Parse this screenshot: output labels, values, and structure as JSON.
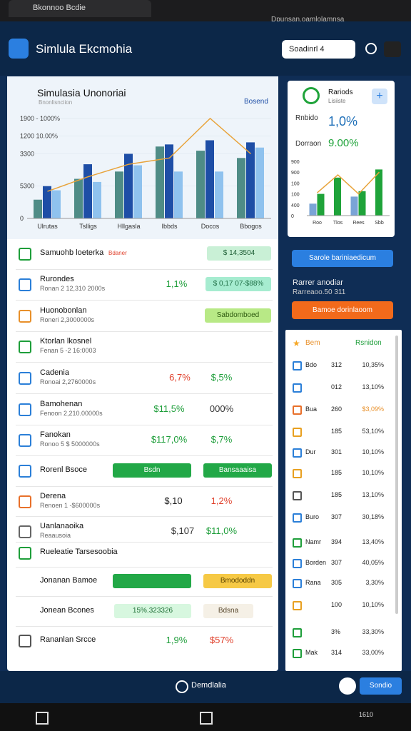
{
  "browser": {
    "tab": "Bkonnoo Bcdie",
    "address": "Dpunsan.oamlolamnsa"
  },
  "header": {
    "title": "Simlula Ekcmohia",
    "selector": "Soadinrl 4"
  },
  "main_chart": {
    "type": "bar",
    "title": "Simulasia Unonoriai",
    "subtitle": "Bnonlisnciion",
    "legend": "Bosend",
    "categories": [
      "Ulrutas",
      "Tslligs",
      "Hllgasla",
      "Ibbds",
      "Docos",
      "Bbogos"
    ],
    "series": [
      {
        "color": "#4f8c86",
        "values": [
          18,
          38,
          45,
          69,
          65,
          58
        ]
      },
      {
        "color": "#1e4ea6",
        "values": [
          31,
          52,
          62,
          71,
          75,
          73
        ]
      },
      {
        "color": "#8fc2ee",
        "values": [
          27,
          35,
          51,
          45,
          45,
          68
        ]
      },
      {
        "type": "line",
        "color": "#e8a33a",
        "values": [
          26,
          40,
          52,
          58,
          96,
          62
        ]
      }
    ],
    "ylim": [
      0,
      100
    ],
    "yticks": [
      {
        "value": 96,
        "label": "1900 - 1000%"
      },
      {
        "value": 79,
        "label": "1200 10.00%"
      },
      {
        "value": 62,
        "label": "3300"
      },
      {
        "value": 31,
        "label": "5300"
      },
      0
    ],
    "grid": true
  },
  "side_chart": {
    "type": "bar",
    "title": "Rariods",
    "subtitle": "Lisiiste",
    "stats": [
      {
        "label": "Rnbido",
        "value": "1,0%"
      },
      {
        "label": "Dorraon",
        "value": "9.00%"
      }
    ],
    "categories": [
      "Roo",
      "Tlos",
      "Rees",
      "Sbb"
    ],
    "series": [
      {
        "color": "#7aa4d6",
        "values": [
          22,
          null,
          35,
          null
        ]
      },
      {
        "color": "#1fa33a",
        "values": [
          40,
          70,
          45,
          85
        ]
      },
      {
        "type": "line",
        "color": "#e8a33a",
        "values": [
          42,
          75,
          40,
          80
        ]
      }
    ],
    "ylim": [
      0,
      100
    ],
    "yticks": [
      {
        "value": 100,
        "label": "900"
      },
      {
        "value": 80,
        "label": "900"
      },
      {
        "value": 60,
        "label": "100"
      },
      {
        "value": 40,
        "label": "100"
      },
      {
        "value": 20,
        "label": "400"
      },
      0
    ]
  },
  "side_actions": {
    "primary": "Sarole bariniaedicum",
    "text": "Rarrer anodiar",
    "subtext": "Rarreaoo.50 311",
    "secondary": "Bamoe dorinlaoom"
  },
  "rows": [
    {
      "title": "Samuohb loeterka",
      "tag": "Bdaner",
      "icon": "#1e9e3a",
      "cells": [
        {
          "text": "$ 14,3504",
          "color": "#1e5e35",
          "bg": "#c9f0d6"
        }
      ]
    },
    {
      "title": "Rurondes",
      "sub": "Ronan 2 12,310 2000s",
      "icon": "#2b7fd8",
      "cells": [
        {
          "text": "1,1%",
          "color": "#1e9e3a"
        },
        {
          "text": "$ 0,17 07-$88%",
          "color": "#1e6e45",
          "bg": "#a6ecd0"
        }
      ]
    },
    {
      "title": "Huonobonlan",
      "sub": "Roneri 2,3000000s",
      "icon": "#e8902a",
      "cells": [
        {
          "text": "Sabdomboed",
          "color": "#2e5a10",
          "bg": "#b8e986"
        }
      ]
    },
    {
      "title": "Ktorlan lkosnel",
      "sub": "Fenan 5 -2 16:0003",
      "icon": "#1e9e3a",
      "cells": []
    },
    {
      "title": "Cadenia",
      "sub": "Ronoai 2,2760000s",
      "icon": "#2b7fd8",
      "cells": [
        {
          "text": "6,7%",
          "color": "#e0402b"
        },
        {
          "text": "$,5%",
          "color": "#1e9e3a"
        }
      ]
    },
    {
      "title": "Bamohenan",
      "sub": "Fenoon 2,210.00000s",
      "icon": "#2b7fd8",
      "cells": [
        {
          "text": "$11,5%",
          "color": "#1e9e3a"
        },
        {
          "text": "000%",
          "color": "#333333"
        }
      ]
    },
    {
      "title": "Fanokan",
      "sub": "Ronoo 5 $ 5000000s",
      "icon": "#2b7fd8",
      "cells": [
        {
          "text": "$117,0%",
          "color": "#1e9e3a"
        },
        {
          "text": "$,7%",
          "color": "#1e9e3a"
        }
      ]
    },
    {
      "title": "Rorenl Bsoce",
      "icon": "#2b7fd8",
      "cells": [
        {
          "text": "Bsdn",
          "color": "#ffffff",
          "bg": "#22a847"
        },
        {
          "text": "Bansaaaisa",
          "color": "#ffffff",
          "bg": "#22a847"
        }
      ]
    },
    {
      "title": "Derena",
      "sub": "Renoen 1 -$600000s",
      "icon": "#e8702a",
      "cells": [
        {
          "text": "$,10",
          "color": "#222222"
        },
        {
          "text": "1,2%",
          "color": "#e0402b"
        }
      ]
    },
    {
      "title": "Uanlanaoika",
      "sub": "Reaausoia",
      "icon": "#666666",
      "cells": [
        {
          "text": "$,107",
          "color": "#333333"
        },
        {
          "text": "$11,0%",
          "color": "#1e9e3a"
        }
      ]
    },
    {
      "title": "Rueleatie Tarsesoobia",
      "icon": "#1e9e3a",
      "cells": []
    },
    {
      "title": "Jonanan Bamoe",
      "cells": [
        {
          "bg": "#22a847"
        },
        {
          "text": "Bmododdn",
          "color": "#5a4300",
          "bg": "#f6c945"
        }
      ]
    },
    {
      "title": "Jonean Bcones",
      "cells": [
        {
          "text": "15%.323326",
          "color": "#1e6e35",
          "bg": "#d7f7df"
        },
        {
          "text": "Bdsna",
          "color": "#5a4a30",
          "bg": "#f5f0e6"
        }
      ]
    },
    {
      "title": "Rananlan Srcce",
      "icon": "#555555",
      "cells": [
        {
          "text": "1,9%",
          "color": "#1e9e3a"
        },
        {
          "text": "$57%",
          "color": "#e0402b"
        }
      ]
    }
  ],
  "ranking": {
    "header": [
      "Bem",
      "Rsnidon"
    ],
    "rows": [
      {
        "icon": "#2b7fd8",
        "name": "Bdo",
        "num": "312",
        "pct": "10,35%"
      },
      {
        "icon": "#2b7fd8",
        "num": "012",
        "pct": "13,10%"
      },
      {
        "icon": "#e8702a",
        "name": "Bua",
        "num": "260",
        "pct": "$3,09%",
        "color": "#e8902a"
      },
      {
        "icon": "#e8a020",
        "num": "185",
        "pct": "53,10%"
      },
      {
        "icon": "#2b7fd8",
        "name": "Dur",
        "num": "301",
        "pct": "10,10%"
      },
      {
        "icon": "#e8a020",
        "num": "185",
        "pct": "10,10%"
      },
      {
        "icon": "#555555",
        "num": "185",
        "pct": "13,10%"
      },
      {
        "icon": "#2b7fd8",
        "name": "Buro",
        "num": "307",
        "pct": "30,18%"
      },
      {
        "icon": "#1e9e3a",
        "name": "Namr",
        "num": "394",
        "pct": "13,40%"
      },
      {
        "icon": "#2b7fd8",
        "name": "Borden",
        "num": "307",
        "pct": "40,05%"
      },
      {
        "icon": "#2b7fd8",
        "name": "Rana",
        "num": "305",
        "pct": "3,30%"
      },
      {
        "icon": "#e8a020",
        "num": "100",
        "pct": "10,10%"
      },
      {
        "icon": "#1e9e3a",
        "num": "3%",
        "pct": "33,30%"
      },
      {
        "icon": "#1e9e3a",
        "name": "Mak",
        "num": "314",
        "pct": "33,00%"
      }
    ]
  },
  "footer": {
    "label": "Demdlalia",
    "button": "Sondio"
  },
  "system": {
    "time": "1610"
  }
}
